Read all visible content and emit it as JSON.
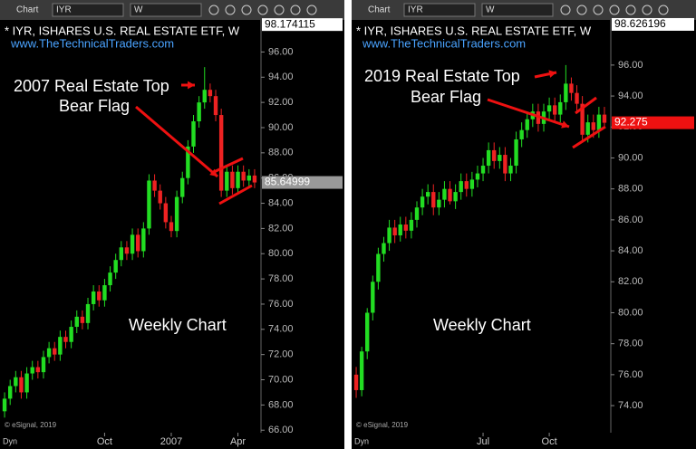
{
  "chart_data": [
    {
      "type": "candlestick",
      "toolbar_label": "Chart",
      "symbol": "IYR",
      "interval": "W",
      "title": "* IYR, ISHARES U.S. REAL ESTATE ETF, W",
      "subtitle": "www.TheTechnicalTraders.com",
      "annotations": [
        "2007 Real Estate Top",
        "Bear Flag",
        "Weekly Chart"
      ],
      "copyright": "© eSignal, 2019",
      "footer": "Dyn",
      "up_color": "#22dd22",
      "down_color": "#ee2222",
      "open": [
        67.5,
        68.5,
        69.5,
        70.2,
        69.0,
        70.5,
        71.0,
        70.6,
        71.8,
        72.5,
        72.0,
        73.4,
        73.0,
        74.2,
        75.0,
        74.5,
        76.0,
        77.0,
        76.3,
        77.5,
        78.5,
        79.5,
        80.5,
        80.0,
        81.5,
        80.2,
        82.0,
        85.8,
        85.0,
        84.0,
        82.5,
        81.8,
        84.5,
        86.0,
        88.5,
        90.5,
        92.0,
        93.0,
        92.5,
        91.0,
        85.0,
        86.5,
        85.2,
        86.5,
        85.8,
        86.2
      ],
      "high": [
        69.0,
        70.0,
        70.7,
        70.7,
        71.0,
        71.5,
        71.5,
        72.3,
        73.0,
        73.0,
        73.9,
        73.9,
        74.7,
        75.5,
        75.5,
        76.5,
        77.5,
        77.5,
        78.0,
        79.0,
        80.0,
        81.0,
        81.0,
        82.0,
        82.0,
        82.5,
        86.3,
        86.3,
        85.5,
        84.5,
        83.0,
        85.0,
        86.5,
        89.0,
        91.0,
        92.5,
        94.8,
        93.5,
        93.0,
        91.5,
        87.0,
        87.0,
        87.0,
        87.0,
        86.7,
        86.7
      ],
      "low": [
        67.0,
        68.0,
        69.0,
        68.5,
        68.5,
        70.0,
        70.1,
        70.1,
        71.3,
        71.5,
        71.5,
        72.5,
        72.5,
        73.7,
        74.0,
        74.0,
        75.5,
        75.8,
        75.8,
        77.0,
        78.0,
        79.0,
        79.5,
        79.5,
        79.7,
        79.7,
        81.5,
        84.5,
        83.5,
        82.0,
        81.3,
        81.3,
        84.0,
        85.5,
        88.0,
        90.0,
        91.5,
        92.0,
        90.5,
        84.5,
        84.5,
        84.7,
        84.7,
        85.3,
        85.3,
        85.2
      ],
      "close": [
        68.5,
        69.5,
        70.2,
        69.0,
        70.5,
        71.0,
        70.6,
        71.8,
        72.5,
        72.0,
        73.4,
        73.0,
        74.2,
        75.0,
        74.5,
        76.0,
        77.0,
        76.3,
        77.5,
        78.5,
        79.5,
        80.5,
        80.0,
        81.5,
        80.2,
        82.0,
        85.8,
        85.0,
        84.0,
        82.5,
        81.8,
        84.5,
        86.0,
        88.5,
        90.5,
        92.0,
        93.0,
        92.5,
        91.0,
        85.0,
        86.5,
        85.2,
        86.5,
        85.8,
        86.2,
        85.65
      ],
      "ylim": [
        65.8,
        98.4
      ],
      "yticks": [
        {
          "value": 66,
          "label": "66.00"
        },
        {
          "value": 68,
          "label": "68.00"
        },
        {
          "value": 70,
          "label": "70.00"
        },
        {
          "value": 72,
          "label": "72.00"
        },
        {
          "value": 74,
          "label": "74.00"
        },
        {
          "value": 76,
          "label": "76.00"
        },
        {
          "value": 78,
          "label": "78.00"
        },
        {
          "value": 80,
          "label": "80.00"
        },
        {
          "value": 82,
          "label": "82.00"
        },
        {
          "value": 84,
          "label": "84.00"
        },
        {
          "value": 86,
          "label": "86.00"
        },
        {
          "value": 88,
          "label": "88.00"
        },
        {
          "value": 90,
          "label": "90.00"
        },
        {
          "value": 92,
          "label": "92.00"
        },
        {
          "value": 94,
          "label": "94.00"
        },
        {
          "value": 96,
          "label": "96.00"
        }
      ],
      "xticks": [
        {
          "value": 18,
          "label": "Oct"
        },
        {
          "value": 30,
          "label": "2007"
        },
        {
          "value": 42,
          "label": "Apr"
        }
      ],
      "price_tags": [
        {
          "value": 98.174115,
          "label": "98.174115",
          "color": "#ffffff"
        },
        {
          "value": 85.64999,
          "label": "85.64999",
          "color": "#999999"
        }
      ]
    },
    {
      "type": "candlestick",
      "toolbar_label": "Chart",
      "symbol": "IYR",
      "interval": "W",
      "title": "* IYR, ISHARES U.S. REAL ESTATE ETF, W",
      "subtitle": "www.TheTechnicalTraders.com",
      "annotations": [
        "2019 Real Estate Top",
        "Bear Flag",
        "Weekly Chart"
      ],
      "copyright": "© eSignal, 2019",
      "footer": "Dyn",
      "up_color": "#22dd22",
      "down_color": "#ee2222",
      "open": [
        76.0,
        75.0,
        77.5,
        80.0,
        82.0,
        83.8,
        84.5,
        85.5,
        85.0,
        85.7,
        85.3,
        86.0,
        86.8,
        87.5,
        87.8,
        86.8,
        87.3,
        88.0,
        87.2,
        87.8,
        88.5,
        88.0,
        88.6,
        89.0,
        89.5,
        90.5,
        89.8,
        90.2,
        89.0,
        89.5,
        91.2,
        91.8,
        92.5,
        93.0,
        92.2,
        93.0,
        93.4,
        92.8,
        93.6,
        94.8,
        94.2,
        93.5,
        91.5,
        92.3,
        91.8,
        92.8
      ],
      "high": [
        76.5,
        77.8,
        80.3,
        82.4,
        84.2,
        84.9,
        86.0,
        86.0,
        86.2,
        86.2,
        86.5,
        87.2,
        88.0,
        88.3,
        88.3,
        87.8,
        88.5,
        88.5,
        88.3,
        89.0,
        89.0,
        89.1,
        89.5,
        90.0,
        91.0,
        91.0,
        90.7,
        90.7,
        90.0,
        91.7,
        92.3,
        93.0,
        93.5,
        93.5,
        93.5,
        93.9,
        93.9,
        94.1,
        96.0,
        95.2,
        94.7,
        94.0,
        92.8,
        92.8,
        93.3,
        93.3
      ],
      "low": [
        74.5,
        74.6,
        77.0,
        79.5,
        81.5,
        83.3,
        84.0,
        84.5,
        84.6,
        84.8,
        84.8,
        85.5,
        86.3,
        87.0,
        86.3,
        86.3,
        86.8,
        87.0,
        86.7,
        87.3,
        87.5,
        87.5,
        88.1,
        88.5,
        89.0,
        89.3,
        89.3,
        88.5,
        88.5,
        89.0,
        90.7,
        91.3,
        92.0,
        91.7,
        91.7,
        92.5,
        92.3,
        92.3,
        93.1,
        93.7,
        93.0,
        91.0,
        91.0,
        91.3,
        91.3,
        92.0
      ],
      "close": [
        75.0,
        77.5,
        80.0,
        82.0,
        83.8,
        84.5,
        85.5,
        85.0,
        85.7,
        85.3,
        86.0,
        86.8,
        87.5,
        87.8,
        86.8,
        87.3,
        88.0,
        87.2,
        87.8,
        88.5,
        88.0,
        88.6,
        89.0,
        89.5,
        90.5,
        89.8,
        90.2,
        89.0,
        89.5,
        91.2,
        91.8,
        92.5,
        93.0,
        92.2,
        93.0,
        93.4,
        92.8,
        93.6,
        94.8,
        94.2,
        93.5,
        91.5,
        92.3,
        91.8,
        92.8,
        92.275
      ],
      "ylim": [
        72.25,
        98.8
      ],
      "yticks": [
        {
          "value": 74,
          "label": "74.00"
        },
        {
          "value": 76,
          "label": "76.00"
        },
        {
          "value": 78,
          "label": "78.00"
        },
        {
          "value": 80,
          "label": "80.00"
        },
        {
          "value": 82,
          "label": "82.00"
        },
        {
          "value": 84,
          "label": "84.00"
        },
        {
          "value": 86,
          "label": "86.00"
        },
        {
          "value": 88,
          "label": "88.00"
        },
        {
          "value": 90,
          "label": "90.00"
        },
        {
          "value": 92,
          "label": "92.00"
        },
        {
          "value": 94,
          "label": "94.00"
        },
        {
          "value": 96,
          "label": "96.00"
        }
      ],
      "xticks": [
        {
          "value": 23,
          "label": "Jul"
        },
        {
          "value": 35,
          "label": "Oct"
        }
      ],
      "price_tags": [
        {
          "value": 98.626196,
          "label": "98.626196",
          "color": "#ffffff"
        },
        {
          "value": 92.275,
          "label": "92.275",
          "color": "#ee1111"
        }
      ]
    }
  ]
}
